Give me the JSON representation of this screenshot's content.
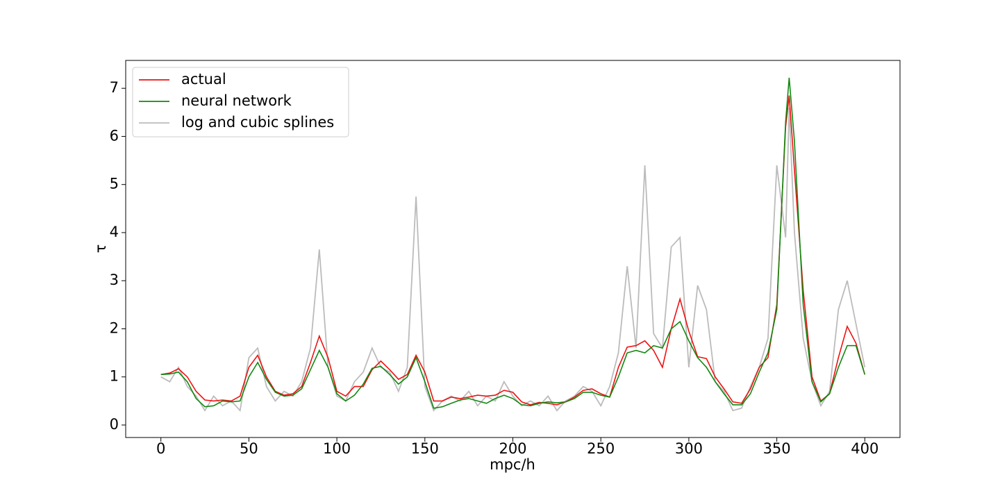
{
  "chart_data": {
    "type": "line",
    "xlabel": "mpc/h",
    "ylabel": "τ",
    "x": [
      0,
      5,
      10,
      15,
      20,
      25,
      30,
      35,
      40,
      45,
      50,
      55,
      60,
      65,
      70,
      75,
      80,
      85,
      90,
      95,
      100,
      105,
      110,
      115,
      120,
      125,
      130,
      135,
      140,
      145,
      150,
      155,
      160,
      165,
      170,
      175,
      180,
      185,
      190,
      195,
      200,
      205,
      210,
      215,
      220,
      225,
      230,
      235,
      240,
      245,
      250,
      255,
      260,
      265,
      270,
      275,
      280,
      285,
      290,
      295,
      300,
      305,
      310,
      315,
      320,
      325,
      330,
      335,
      340,
      345,
      350,
      355,
      357,
      360,
      365,
      370,
      375,
      380,
      385,
      390,
      395,
      400
    ],
    "series": [
      {
        "name": "log and cubic splines",
        "color": "#bbbbbb",
        "values": [
          1.0,
          0.9,
          1.2,
          0.8,
          0.6,
          0.3,
          0.6,
          0.4,
          0.5,
          0.3,
          1.4,
          1.6,
          0.8,
          0.5,
          0.7,
          0.6,
          0.9,
          1.6,
          3.65,
          1.2,
          0.6,
          0.5,
          0.9,
          1.1,
          1.6,
          1.2,
          1.1,
          0.7,
          1.2,
          4.75,
          0.8,
          0.3,
          0.5,
          0.6,
          0.5,
          0.7,
          0.4,
          0.6,
          0.5,
          0.9,
          0.6,
          0.4,
          0.5,
          0.4,
          0.6,
          0.3,
          0.5,
          0.6,
          0.8,
          0.7,
          0.4,
          0.8,
          1.5,
          3.3,
          1.6,
          5.4,
          1.9,
          1.6,
          3.7,
          3.9,
          1.2,
          2.9,
          2.4,
          0.9,
          0.7,
          0.3,
          0.35,
          0.8,
          1.2,
          1.8,
          5.4,
          3.9,
          6.6,
          4.0,
          1.8,
          0.9,
          0.4,
          0.7,
          2.4,
          3.0,
          2.1,
          1.2
        ]
      },
      {
        "name": "actual",
        "color": "#ee1111",
        "values": [
          1.05,
          1.08,
          1.17,
          1.0,
          0.7,
          0.52,
          0.5,
          0.52,
          0.5,
          0.6,
          1.2,
          1.45,
          1.0,
          0.7,
          0.62,
          0.65,
          0.8,
          1.3,
          1.85,
          1.4,
          0.7,
          0.6,
          0.8,
          0.8,
          1.15,
          1.33,
          1.15,
          0.95,
          1.05,
          1.45,
          1.1,
          0.5,
          0.5,
          0.58,
          0.55,
          0.58,
          0.62,
          0.6,
          0.62,
          0.72,
          0.68,
          0.48,
          0.42,
          0.47,
          0.45,
          0.42,
          0.48,
          0.58,
          0.72,
          0.75,
          0.65,
          0.58,
          1.2,
          1.62,
          1.65,
          1.75,
          1.55,
          1.2,
          2.0,
          2.62,
          1.95,
          1.42,
          1.38,
          1.0,
          0.75,
          0.48,
          0.45,
          0.75,
          1.2,
          1.4,
          2.5,
          6.2,
          6.85,
          5.3,
          2.8,
          1.0,
          0.5,
          0.65,
          1.4,
          2.05,
          1.7,
          1.05
        ]
      },
      {
        "name": "neural network",
        "color": "#118811",
        "values": [
          1.05,
          1.06,
          1.1,
          0.9,
          0.55,
          0.38,
          0.4,
          0.5,
          0.48,
          0.5,
          1.0,
          1.3,
          0.95,
          0.68,
          0.6,
          0.62,
          0.75,
          1.15,
          1.55,
          1.2,
          0.65,
          0.5,
          0.62,
          0.85,
          1.18,
          1.22,
          1.05,
          0.85,
          1.0,
          1.4,
          0.9,
          0.35,
          0.38,
          0.45,
          0.52,
          0.55,
          0.5,
          0.45,
          0.55,
          0.62,
          0.55,
          0.42,
          0.4,
          0.45,
          0.48,
          0.46,
          0.48,
          0.55,
          0.68,
          0.68,
          0.62,
          0.58,
          1.0,
          1.5,
          1.55,
          1.5,
          1.65,
          1.6,
          2.0,
          2.15,
          1.75,
          1.4,
          1.2,
          0.9,
          0.65,
          0.42,
          0.42,
          0.65,
          1.1,
          1.5,
          2.4,
          6.3,
          7.22,
          5.9,
          2.5,
          0.9,
          0.48,
          0.65,
          1.2,
          1.65,
          1.65,
          1.05
        ]
      }
    ],
    "legend_order": [
      "actual",
      "neural network",
      "log and cubic splines"
    ],
    "legend": "upper left",
    "xlim": [
      -20,
      420
    ],
    "ylim": [
      -0.26,
      7.58
    ],
    "xticks": [
      0,
      50,
      100,
      150,
      200,
      250,
      300,
      350,
      400
    ],
    "yticks": [
      0,
      1,
      2,
      3,
      4,
      5,
      6,
      7
    ],
    "grid": false
  }
}
